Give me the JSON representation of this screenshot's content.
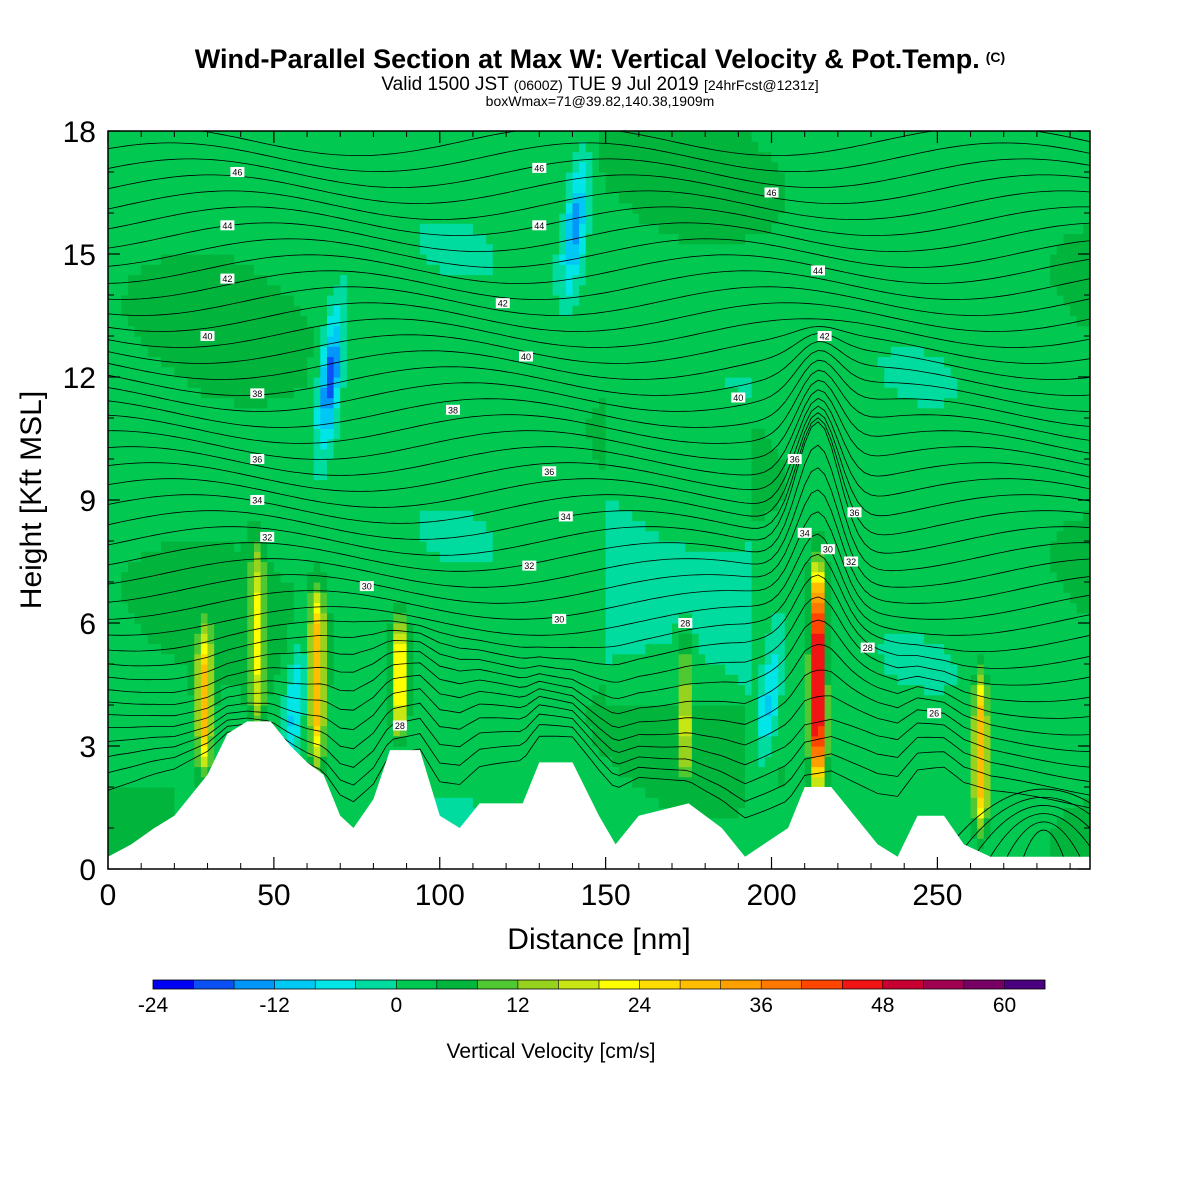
{
  "header": {
    "title": "Wind-Parallel Section at Max W: Vertical Velocity & Pot.Temp.",
    "copyright": "(C)",
    "valid_prefix": "Valid 1500 JST",
    "valid_utc": "(0600Z)",
    "valid_date": "TUE 9 Jul 2019",
    "forecast": "[24hrFcst@1231z]",
    "boxmax": "boxWmax=71@39.82,140.38,1909m"
  },
  "chart_data": {
    "type": "heatmap",
    "xlabel": "Distance [nm]",
    "ylabel": "Height [Kft MSL]",
    "xlim": [
      0,
      296
    ],
    "ylim": [
      0,
      18
    ],
    "x_ticks": [
      "0",
      "50",
      "100",
      "150",
      "200",
      "250"
    ],
    "y_ticks": [
      "0",
      "3",
      "6",
      "9",
      "12",
      "15",
      "18"
    ],
    "x_tick_values": [
      0,
      50,
      100,
      150,
      200,
      250
    ],
    "y_tick_values": [
      0,
      3,
      6,
      9,
      12,
      15,
      18
    ],
    "colorbar": {
      "label": "Vertical Velocity [cm/s]",
      "levels": [
        -24,
        -20,
        -16,
        -12,
        -8,
        -4,
        0,
        4,
        8,
        12,
        16,
        20,
        24,
        28,
        32,
        36,
        40,
        44,
        48,
        52,
        56,
        60,
        64
      ],
      "tick_labels": [
        "-24",
        "-12",
        "0",
        "12",
        "24",
        "36",
        "48",
        "60"
      ],
      "tick_values": [
        -24,
        -12,
        0,
        12,
        24,
        36,
        48,
        60
      ],
      "colors": [
        "#0000f5",
        "#0a50f5",
        "#0096fa",
        "#00c8f5",
        "#00e6e6",
        "#00dca0",
        "#00c850",
        "#00b43c",
        "#50c832",
        "#96d21e",
        "#c8e614",
        "#ffff00",
        "#ffdc00",
        "#ffbe00",
        "#ffa000",
        "#ff7800",
        "#ff4600",
        "#f01414",
        "#c80032",
        "#a00050",
        "#780064",
        "#4b0080"
      ]
    },
    "updrafts": [
      {
        "x": 29,
        "bottom": 2.2,
        "top": 6.0,
        "peak": 26
      },
      {
        "x": 45,
        "bottom": 3.2,
        "top": 8.2,
        "peak": 16
      },
      {
        "x": 63,
        "bottom": 2.3,
        "top": 7.0,
        "peak": 28
      },
      {
        "x": 88,
        "bottom": 3.0,
        "top": 6.4,
        "peak": 24
      },
      {
        "x": 174,
        "bottom": 2.0,
        "top": 6.0,
        "peak": 14
      },
      {
        "x": 214,
        "bottom": 1.8,
        "top": 7.6,
        "peak": 56
      },
      {
        "x": 263,
        "bottom": 0.8,
        "top": 5.0,
        "peak": 30
      }
    ],
    "downdrafts": [
      {
        "x": 67,
        "y": 12.0,
        "peak": -22
      },
      {
        "x": 141,
        "y": 15.8,
        "peak": -16
      },
      {
        "x": 199,
        "y": 4.0,
        "peak": -12
      },
      {
        "x": 56,
        "y": 4.0,
        "peak": -12
      }
    ],
    "terrain_kft": [
      [
        0,
        0.3
      ],
      [
        7,
        0.6
      ],
      [
        14,
        1.0
      ],
      [
        20,
        1.3
      ],
      [
        30,
        2.3
      ],
      [
        36,
        3.3
      ],
      [
        42,
        3.6
      ],
      [
        49,
        3.6
      ],
      [
        55,
        3.0
      ],
      [
        60,
        2.6
      ],
      [
        65,
        2.3
      ],
      [
        70,
        1.3
      ],
      [
        74,
        1.0
      ],
      [
        80,
        1.7
      ],
      [
        85,
        2.9
      ],
      [
        94,
        2.9
      ],
      [
        100,
        1.3
      ],
      [
        106,
        1.0
      ],
      [
        112,
        1.6
      ],
      [
        125,
        1.6
      ],
      [
        130,
        2.6
      ],
      [
        140,
        2.6
      ],
      [
        148,
        1.3
      ],
      [
        153,
        0.6
      ],
      [
        160,
        1.3
      ],
      [
        175,
        1.6
      ],
      [
        185,
        1.0
      ],
      [
        192,
        0.3
      ],
      [
        205,
        1.0
      ],
      [
        210,
        2.0
      ],
      [
        218,
        2.0
      ],
      [
        225,
        1.3
      ],
      [
        232,
        0.6
      ],
      [
        238,
        0.3
      ],
      [
        244,
        1.3
      ],
      [
        252,
        1.3
      ],
      [
        258,
        0.6
      ],
      [
        266,
        0.3
      ],
      [
        296,
        0.3
      ]
    ],
    "theta_labels": [
      {
        "text": "46",
        "x": 39,
        "y": 17.0
      },
      {
        "text": "44",
        "x": 36,
        "y": 15.7
      },
      {
        "text": "42",
        "x": 36,
        "y": 14.4
      },
      {
        "text": "40",
        "x": 30,
        "y": 13.0
      },
      {
        "text": "38",
        "x": 45,
        "y": 11.6
      },
      {
        "text": "36",
        "x": 45,
        "y": 10.0
      },
      {
        "text": "34",
        "x": 45,
        "y": 9.0
      },
      {
        "text": "32",
        "x": 48,
        "y": 8.1
      },
      {
        "text": "30",
        "x": 78,
        "y": 6.9
      },
      {
        "text": "28",
        "x": 88,
        "y": 3.5
      },
      {
        "text": "46",
        "x": 130,
        "y": 17.1
      },
      {
        "text": "44",
        "x": 130,
        "y": 15.7
      },
      {
        "text": "42",
        "x": 119,
        "y": 13.8
      },
      {
        "text": "40",
        "x": 126,
        "y": 12.5
      },
      {
        "text": "38",
        "x": 104,
        "y": 11.2
      },
      {
        "text": "36",
        "x": 133,
        "y": 9.7
      },
      {
        "text": "34",
        "x": 138,
        "y": 8.6
      },
      {
        "text": "32",
        "x": 127,
        "y": 7.4
      },
      {
        "text": "30",
        "x": 136,
        "y": 6.1
      },
      {
        "text": "28",
        "x": 174,
        "y": 6.0
      },
      {
        "text": "46",
        "x": 200,
        "y": 16.5
      },
      {
        "text": "44",
        "x": 214,
        "y": 14.6
      },
      {
        "text": "42",
        "x": 216,
        "y": 13.0
      },
      {
        "text": "40",
        "x": 190,
        "y": 11.5
      },
      {
        "text": "36",
        "x": 207,
        "y": 10.0
      },
      {
        "text": "36",
        "x": 225,
        "y": 8.7
      },
      {
        "text": "34",
        "x": 210,
        "y": 8.2
      },
      {
        "text": "30",
        "x": 217,
        "y": 7.8
      },
      {
        "text": "32",
        "x": 224,
        "y": 7.5
      },
      {
        "text": "28",
        "x": 229,
        "y": 5.4
      },
      {
        "text": "26",
        "x": 249,
        "y": 3.8
      }
    ]
  }
}
